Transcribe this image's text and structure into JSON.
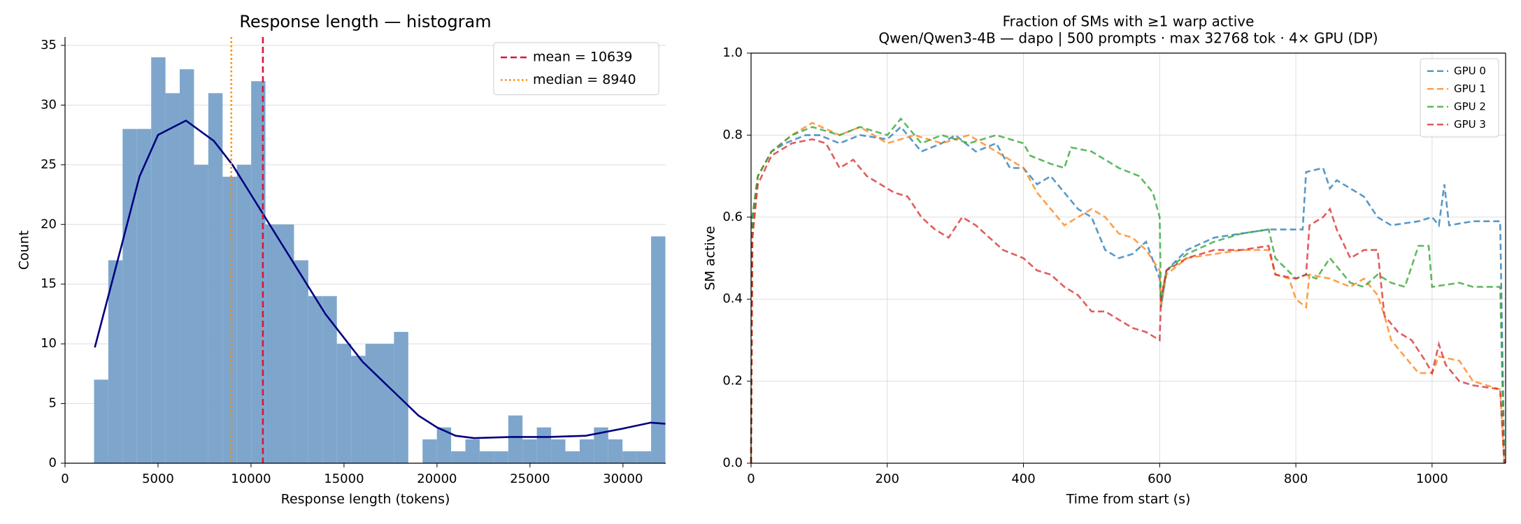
{
  "chart_data": [
    {
      "type": "histogram",
      "title": "Response length — histogram",
      "xlabel": "Response length (tokens)",
      "ylabel": "Count",
      "bins": [
        1560,
        2328,
        3096,
        3864,
        4632,
        5400,
        6168,
        6936,
        7704,
        8472,
        9240,
        10008,
        10776,
        11544,
        12312,
        13080,
        13848,
        14616,
        15384,
        16152,
        16920,
        17688,
        18456,
        19224,
        19992,
        20760,
        21528,
        22296,
        23064,
        23832,
        24600,
        25368,
        26136,
        26904,
        27672,
        28440,
        29208,
        29976,
        30744,
        31512,
        32280
      ],
      "counts": [
        7,
        17,
        28,
        28,
        34,
        31,
        33,
        25,
        31,
        24,
        25,
        32,
        20,
        20,
        17,
        14,
        14,
        10,
        9,
        10,
        10,
        11,
        0,
        2,
        3,
        1,
        2,
        1,
        1,
        4,
        2,
        3,
        2,
        1,
        2,
        3,
        2,
        1,
        1,
        19
      ],
      "color": "#7ea6cc",
      "kde": {
        "color": "#000080",
        "x": [
          1600,
          3000,
          4000,
          5000,
          6500,
          8000,
          9000,
          10000,
          11000,
          12000,
          13000,
          14000,
          15000,
          16000,
          17000,
          18000,
          19000,
          20000,
          21000,
          22000,
          24000,
          26000,
          28000,
          30000,
          31500,
          32280
        ],
        "values": [
          9.7,
          18,
          24,
          27.5,
          28.7,
          27,
          25,
          22.5,
          20,
          17.5,
          15,
          12.5,
          10.5,
          8.5,
          7,
          5.5,
          4,
          3,
          2.3,
          2.1,
          2.2,
          2.2,
          2.3,
          2.9,
          3.4,
          3.3
        ]
      },
      "reference_lines": [
        {
          "name": "mean = 10639",
          "value": 10639,
          "color": "#dc143c",
          "style": "dashed"
        },
        {
          "name": "median = 8940",
          "value": 8940,
          "color": "#ff8c00",
          "style": "dotted"
        }
      ],
      "xlim": [
        0,
        32300
      ],
      "ylim": [
        0,
        35.7
      ],
      "xticks": [
        0,
        5000,
        10000,
        15000,
        20000,
        25000,
        30000
      ],
      "yticks": [
        0,
        5,
        10,
        15,
        20,
        25,
        30,
        35
      ],
      "grid": "y",
      "legend": "upper right"
    },
    {
      "type": "line",
      "title": "Fraction of SMs with ≥1 warp active",
      "subtitle": "Qwen/Qwen3-4B — dapo  |  500 prompts  ·  max 32768 tok  ·  4× GPU (DP)",
      "xlabel": "Time from start (s)",
      "ylabel": "SM active",
      "line_style": "dashed",
      "series": [
        {
          "name": "GPU 0",
          "color": "#1f77b4",
          "x": [
            0,
            2,
            10,
            30,
            50,
            80,
            100,
            130,
            160,
            200,
            220,
            250,
            280,
            300,
            330,
            360,
            380,
            400,
            420,
            440,
            460,
            480,
            500,
            520,
            540,
            560,
            580,
            600,
            602,
            610,
            640,
            680,
            720,
            760,
            800,
            810,
            815,
            840,
            850,
            860,
            900,
            920,
            940,
            980,
            1000,
            1010,
            1018,
            1025,
            1060,
            1100,
            1106
          ],
          "values": [
            0,
            0.6,
            0.7,
            0.76,
            0.78,
            0.8,
            0.8,
            0.78,
            0.8,
            0.79,
            0.82,
            0.76,
            0.78,
            0.8,
            0.76,
            0.78,
            0.72,
            0.72,
            0.68,
            0.7,
            0.66,
            0.62,
            0.6,
            0.52,
            0.5,
            0.51,
            0.54,
            0.45,
            0.38,
            0.47,
            0.52,
            0.55,
            0.56,
            0.57,
            0.57,
            0.57,
            0.71,
            0.72,
            0.67,
            0.69,
            0.65,
            0.6,
            0.58,
            0.59,
            0.6,
            0.58,
            0.68,
            0.58,
            0.59,
            0.59,
            0
          ]
        },
        {
          "name": "GPU 1",
          "color": "#ff7f0e",
          "x": [
            0,
            2,
            10,
            30,
            60,
            90,
            130,
            160,
            200,
            240,
            280,
            320,
            360,
            400,
            420,
            440,
            460,
            480,
            500,
            520,
            540,
            560,
            580,
            600,
            602,
            610,
            640,
            680,
            720,
            760,
            770,
            790,
            800,
            815,
            820,
            850,
            880,
            900,
            920,
            930,
            940,
            960,
            980,
            1000,
            1010,
            1040,
            1060,
            1100,
            1106
          ],
          "values": [
            0,
            0.55,
            0.7,
            0.76,
            0.8,
            0.83,
            0.8,
            0.82,
            0.78,
            0.8,
            0.78,
            0.8,
            0.76,
            0.72,
            0.66,
            0.62,
            0.58,
            0.6,
            0.62,
            0.6,
            0.56,
            0.55,
            0.52,
            0.47,
            0.38,
            0.46,
            0.5,
            0.51,
            0.52,
            0.52,
            0.46,
            0.45,
            0.4,
            0.38,
            0.46,
            0.45,
            0.43,
            0.45,
            0.41,
            0.36,
            0.3,
            0.26,
            0.22,
            0.22,
            0.26,
            0.25,
            0.2,
            0.18,
            0
          ]
        },
        {
          "name": "GPU 2",
          "color": "#2ca02c",
          "x": [
            0,
            2,
            10,
            30,
            60,
            90,
            130,
            160,
            200,
            220,
            250,
            280,
            320,
            360,
            400,
            410,
            440,
            460,
            470,
            500,
            520,
            540,
            570,
            590,
            600,
            602,
            610,
            640,
            680,
            720,
            760,
            770,
            800,
            815,
            830,
            850,
            860,
            880,
            900,
            920,
            940,
            960,
            980,
            995,
            1000,
            1040,
            1060,
            1100,
            1106
          ],
          "values": [
            0,
            0.6,
            0.7,
            0.76,
            0.8,
            0.82,
            0.8,
            0.82,
            0.8,
            0.84,
            0.78,
            0.8,
            0.78,
            0.8,
            0.78,
            0.75,
            0.73,
            0.72,
            0.77,
            0.76,
            0.74,
            0.72,
            0.7,
            0.66,
            0.6,
            0.4,
            0.47,
            0.51,
            0.54,
            0.56,
            0.57,
            0.5,
            0.45,
            0.46,
            0.45,
            0.5,
            0.48,
            0.44,
            0.43,
            0.46,
            0.44,
            0.43,
            0.53,
            0.53,
            0.43,
            0.44,
            0.43,
            0.43,
            0
          ]
        },
        {
          "name": "GPU 3",
          "color": "#d62728",
          "x": [
            0,
            2,
            10,
            30,
            60,
            90,
            110,
            130,
            150,
            170,
            190,
            210,
            230,
            250,
            270,
            290,
            310,
            330,
            350,
            370,
            400,
            420,
            440,
            460,
            480,
            500,
            520,
            540,
            560,
            580,
            600,
            602,
            610,
            640,
            680,
            720,
            760,
            770,
            800,
            815,
            820,
            840,
            850,
            860,
            880,
            900,
            920,
            930,
            950,
            970,
            990,
            1000,
            1010,
            1020,
            1040,
            1060,
            1100,
            1106
          ],
          "values": [
            0,
            0.55,
            0.68,
            0.75,
            0.78,
            0.79,
            0.78,
            0.72,
            0.74,
            0.7,
            0.68,
            0.66,
            0.65,
            0.6,
            0.57,
            0.55,
            0.6,
            0.58,
            0.55,
            0.52,
            0.5,
            0.47,
            0.46,
            0.43,
            0.41,
            0.37,
            0.37,
            0.35,
            0.33,
            0.32,
            0.3,
            0.4,
            0.47,
            0.5,
            0.52,
            0.52,
            0.53,
            0.46,
            0.45,
            0.46,
            0.58,
            0.6,
            0.62,
            0.57,
            0.5,
            0.52,
            0.52,
            0.36,
            0.32,
            0.3,
            0.25,
            0.22,
            0.29,
            0.24,
            0.2,
            0.19,
            0.18,
            0
          ]
        }
      ],
      "xlim": [
        0,
        1108
      ],
      "ylim": [
        0,
        1
      ],
      "xticks": [
        0,
        200,
        400,
        600,
        800,
        1000
      ],
      "yticks": [
        {
          "value": 0,
          "label": "0.0"
        },
        {
          "value": 0.2,
          "label": "0.2"
        },
        {
          "value": 0.4,
          "label": "0.4"
        },
        {
          "value": 0.6,
          "label": "0.6"
        },
        {
          "value": 0.8,
          "label": "0.8"
        },
        {
          "value": 1,
          "label": "1.0"
        }
      ],
      "grid": "both",
      "legend": "upper right"
    }
  ]
}
